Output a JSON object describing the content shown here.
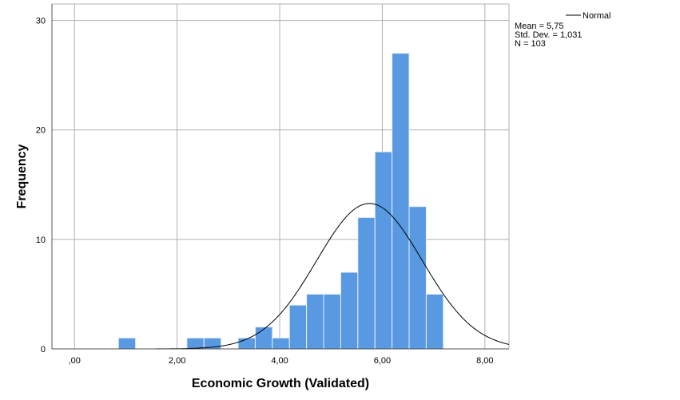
{
  "chart_data": {
    "type": "bar",
    "subtype": "histogram",
    "xlabel": "Economic Growth (Validated)",
    "ylabel": "Frequency",
    "xlim": [
      -0.44,
      8.47
    ],
    "ylim": [
      0,
      31.5
    ],
    "x_ticks": [
      0,
      2,
      4,
      6,
      8
    ],
    "x_tick_labels": [
      ",00",
      "2,00",
      "4,00",
      "6,00",
      "8,00"
    ],
    "y_ticks": [
      0,
      10,
      20,
      30
    ],
    "y_tick_labels": [
      "0",
      "10",
      "20",
      "30"
    ],
    "grid": true,
    "bar_color": "#5899e2",
    "bin_start": 0.857,
    "bin_width": 0.3333,
    "bins": [
      {
        "index": 0,
        "count": 1
      },
      {
        "index": 4,
        "count": 1
      },
      {
        "index": 5,
        "count": 1
      },
      {
        "index": 7,
        "count": 1
      },
      {
        "index": 8,
        "count": 2
      },
      {
        "index": 9,
        "count": 1
      },
      {
        "index": 10,
        "count": 4
      },
      {
        "index": 11,
        "count": 5
      },
      {
        "index": 12,
        "count": 5
      },
      {
        "index": 13,
        "count": 7
      },
      {
        "index": 14,
        "count": 12
      },
      {
        "index": 15,
        "count": 18
      },
      {
        "index": 16,
        "count": 27
      },
      {
        "index": 17,
        "count": 13
      },
      {
        "index": 18,
        "count": 5
      }
    ],
    "normal_curve": {
      "mean": 5.75,
      "sd": 1.031,
      "n": 103
    },
    "legend": {
      "placement": "top-right",
      "series_label": "Normal",
      "stats": [
        "Mean = 5,75",
        "Std. Dev. = 1,031",
        "N = 103"
      ]
    }
  }
}
